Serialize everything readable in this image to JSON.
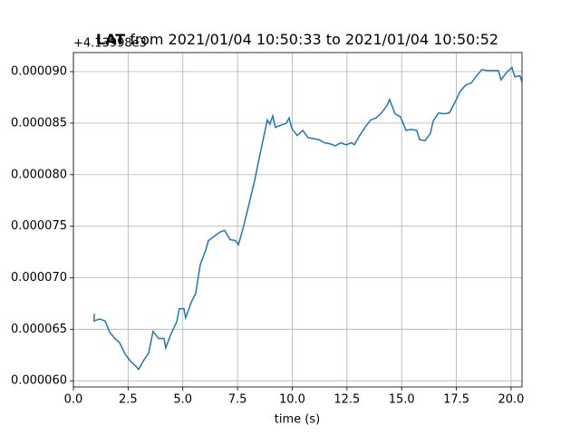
{
  "chart_data": {
    "type": "line",
    "title": [
      "LAT",
      "from 2021/01/04 10:50:33 to 2021/01/04 10:50:52"
    ],
    "y_offset_label": "+4.13998e3",
    "xlabel": "time (s)",
    "x": [
      0.95,
      0.95,
      1.2,
      1.45,
      1.66,
      1.9,
      2.11,
      2.36,
      2.61,
      2.86,
      2.98,
      3.19,
      3.44,
      3.64,
      3.89,
      4.14,
      4.22,
      4.47,
      4.72,
      4.84,
      5.05,
      5.13,
      5.38,
      5.59,
      5.8,
      6.05,
      6.17,
      6.42,
      6.67,
      6.91,
      7.16,
      7.41,
      7.54,
      7.78,
      8.03,
      8.28,
      8.53,
      8.77,
      8.86,
      8.98,
      9.11,
      9.23,
      9.48,
      9.73,
      9.86,
      9.98,
      10.23,
      10.48,
      10.72,
      10.97,
      11.22,
      11.47,
      11.72,
      11.97,
      12.22,
      12.46,
      12.71,
      12.84,
      13.08,
      13.33,
      13.58,
      13.83,
      14.08,
      14.33,
      14.45,
      14.7,
      14.95,
      15.2,
      15.44,
      15.69,
      15.82,
      16.07,
      16.31,
      16.44,
      16.69,
      16.94,
      17.18,
      17.43,
      17.68,
      17.93,
      18.18,
      18.43,
      18.67,
      18.92,
      19.17,
      19.42,
      19.54,
      19.79,
      20.04,
      20.17,
      20.41,
      20.5
    ],
    "series": [
      {
        "color": "#1f77b4",
        "values": [
          6.65e-05,
          6.58e-05,
          6.6e-05,
          6.58e-05,
          6.47e-05,
          6.41e-05,
          6.37e-05,
          6.26e-05,
          6.19e-05,
          6.14e-05,
          6.11e-05,
          6.19e-05,
          6.27e-05,
          6.48e-05,
          6.41e-05,
          6.41e-05,
          6.32e-05,
          6.46e-05,
          6.57e-05,
          6.7e-05,
          6.7e-05,
          6.61e-05,
          6.76e-05,
          6.85e-05,
          7.13e-05,
          7.27e-05,
          7.36e-05,
          7.4e-05,
          7.44e-05,
          7.46e-05,
          7.37e-05,
          7.36e-05,
          7.32e-05,
          7.5e-05,
          7.72e-05,
          7.94e-05,
          8.2e-05,
          8.44e-05,
          8.53e-05,
          8.49e-05,
          8.57e-05,
          8.46e-05,
          8.48e-05,
          8.5e-05,
          8.55e-05,
          8.45e-05,
          8.38e-05,
          8.43e-05,
          8.36e-05,
          8.35e-05,
          8.34e-05,
          8.31e-05,
          8.3e-05,
          8.28e-05,
          8.31e-05,
          8.29e-05,
          8.31e-05,
          8.29e-05,
          8.38e-05,
          8.46e-05,
          8.53e-05,
          8.55e-05,
          8.6e-05,
          8.67e-05,
          8.73e-05,
          8.59e-05,
          8.56e-05,
          8.43e-05,
          8.44e-05,
          8.43e-05,
          8.34e-05,
          8.33e-05,
          8.4e-05,
          8.52e-05,
          8.6e-05,
          8.59e-05,
          8.6e-05,
          8.7e-05,
          8.81e-05,
          8.87e-05,
          8.89e-05,
          8.96e-05,
          9.02e-05,
          9.01e-05,
          9.01e-05,
          9.01e-05,
          8.92e-05,
          8.99e-05,
          9.04e-05,
          8.95e-05,
          8.96e-05,
          8.9e-05
        ]
      }
    ],
    "xlim": [
      0,
      20.5
    ],
    "xticks": [
      {
        "value": 0,
        "label": "0.0"
      },
      2.5,
      {
        "value": 5,
        "label": "5.0"
      },
      7.5,
      {
        "value": 10,
        "label": "10.0"
      },
      12.5,
      {
        "value": 15,
        "label": "15.0"
      },
      17.5,
      {
        "value": 20,
        "label": "20.0"
      }
    ],
    "ylim": [
      5.94e-05,
      9.185e-05
    ],
    "yticks": [
      {
        "value": 6e-05,
        "label": "0.000060"
      },
      {
        "value": 6.5e-05,
        "label": "0.000065"
      },
      {
        "value": 7e-05,
        "label": "0.000070"
      },
      {
        "value": 7.5e-05,
        "label": "0.000075"
      },
      {
        "value": 8e-05,
        "label": "0.000080"
      },
      {
        "value": 8.5e-05,
        "label": "0.000085"
      },
      {
        "value": 9e-05,
        "label": "0.000090"
      }
    ],
    "grid": true
  }
}
